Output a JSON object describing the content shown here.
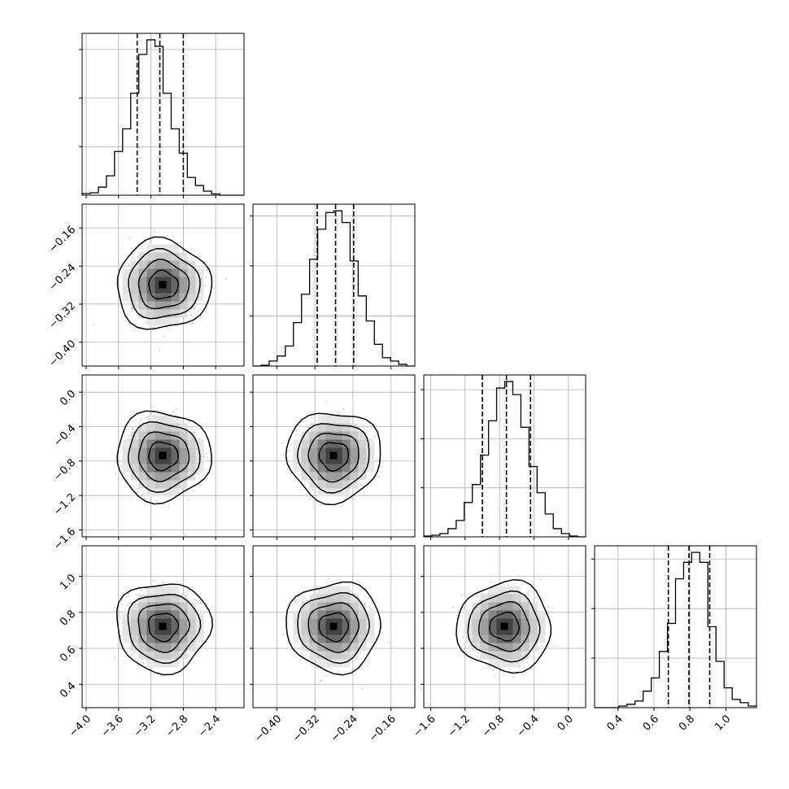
{
  "chart_data": {
    "type": "corner",
    "title": "",
    "parameters": [
      {
        "label": "",
        "range": [
          -4.05,
          -2.05
        ],
        "ticks": [
          -4.0,
          -3.6,
          -3.2,
          -2.8,
          -2.4
        ],
        "tick_labels": [
          "−4.0",
          "−3.6",
          "−3.2",
          "−2.8",
          "−2.4"
        ]
      },
      {
        "label": "",
        "range": [
          -0.45,
          -0.11
        ],
        "ticks": [
          -0.4,
          -0.32,
          -0.24,
          -0.16
        ],
        "tick_labels": [
          "−0.40",
          "−0.32",
          "−0.24",
          "−0.16"
        ]
      },
      {
        "label": "",
        "range": [
          -1.68,
          0.2
        ],
        "ticks": [
          -1.6,
          -1.2,
          -0.8,
          -0.4,
          0.0
        ],
        "tick_labels": [
          "−1.6",
          "−1.2",
          "−0.8",
          "−0.4",
          "0.0"
        ]
      },
      {
        "label": "",
        "range": [
          0.27,
          1.17
        ],
        "ticks": [
          0.4,
          0.6,
          0.8,
          1.0
        ],
        "tick_labels": [
          "0.4",
          "0.6",
          "0.8",
          "1.0"
        ]
      }
    ],
    "histograms": [
      {
        "param": 0,
        "bin_start": -4.05,
        "bin_width": 0.1,
        "counts": [
          0.01,
          0.015,
          0.05,
          0.12,
          0.27,
          0.41,
          0.63,
          0.87,
          0.96,
          0.92,
          0.63,
          0.41,
          0.26,
          0.11,
          0.06,
          0.025,
          0.008,
          0.0,
          0.0,
          0.0
        ],
        "quantiles": [
          -3.37,
          -3.09,
          -2.8
        ]
      },
      {
        "param": 1,
        "bin_start": -0.45,
        "bin_width": 0.017,
        "counts": [
          0.0,
          0.005,
          0.03,
          0.06,
          0.12,
          0.26,
          0.43,
          0.64,
          0.82,
          0.92,
          0.93,
          0.86,
          0.63,
          0.42,
          0.27,
          0.13,
          0.05,
          0.03,
          0.01,
          0.0
        ],
        "quantiles": [
          -0.315,
          -0.2765,
          -0.2385
        ]
      },
      {
        "param": 2,
        "bin_start": -1.68,
        "bin_width": 0.094,
        "counts": [
          0.005,
          0.01,
          0.02,
          0.05,
          0.1,
          0.21,
          0.32,
          0.5,
          0.71,
          0.91,
          0.95,
          0.87,
          0.67,
          0.43,
          0.27,
          0.14,
          0.05,
          0.02,
          0.005,
          0.0
        ],
        "quantiles": [
          -1.0,
          -0.72,
          -0.44
        ]
      },
      {
        "param": 3,
        "bin_start": 0.27,
        "bin_width": 0.045,
        "counts": [
          0.0,
          0.0,
          0.0,
          0.01,
          0.02,
          0.04,
          0.1,
          0.18,
          0.34,
          0.51,
          0.78,
          0.88,
          0.94,
          0.88,
          0.49,
          0.28,
          0.12,
          0.05,
          0.03,
          0.01
        ],
        "quantiles": [
          0.68,
          0.795,
          0.91
        ]
      }
    ],
    "grid": true,
    "legend": "none"
  }
}
